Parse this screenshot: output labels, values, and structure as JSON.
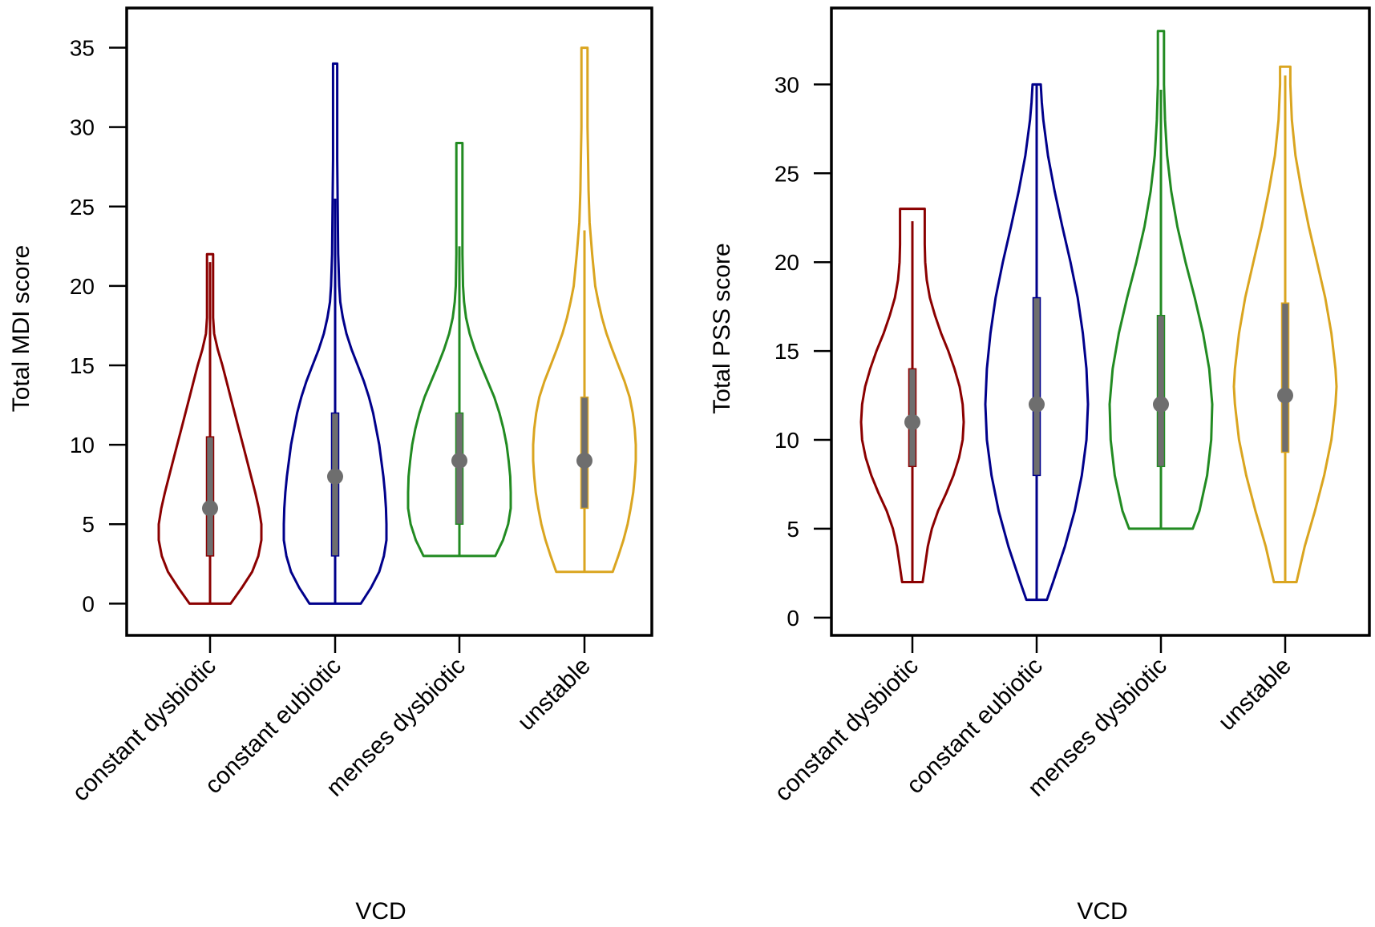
{
  "chart_data": [
    {
      "type": "violin",
      "title": "",
      "xlabel": "VCD",
      "ylabel": "Total MDI score",
      "ylim": [
        -2,
        37.5
      ],
      "yticks": [
        0,
        5,
        10,
        15,
        20,
        25,
        30,
        35
      ],
      "yticklabels": [
        "0",
        "5",
        "10",
        "15",
        "20",
        "25",
        "30",
        "35"
      ],
      "categories": [
        "constant dysbiotic",
        "constant eubiotic",
        "menses dysbiotic",
        "unstable"
      ],
      "colors": [
        "#8b0000",
        "#00008b",
        "#228b22",
        "#daa520"
      ],
      "series": [
        {
          "name": "constant dysbiotic",
          "min": 0,
          "q1": 3,
          "median": 6,
          "q3": 10.5,
          "max": 22,
          "whisker_high": 21.5,
          "density": [
            [
              0,
              0.4
            ],
            [
              1,
              0.62
            ],
            [
              2,
              0.82
            ],
            [
              3,
              0.94
            ],
            [
              4,
              1.0
            ],
            [
              5,
              1.0
            ],
            [
              6,
              0.95
            ],
            [
              7,
              0.88
            ],
            [
              8,
              0.8
            ],
            [
              9,
              0.72
            ],
            [
              10,
              0.64
            ],
            [
              11,
              0.56
            ],
            [
              12,
              0.48
            ],
            [
              13,
              0.4
            ],
            [
              14,
              0.32
            ],
            [
              15,
              0.24
            ],
            [
              16,
              0.15
            ],
            [
              17,
              0.08
            ],
            [
              18,
              0.06
            ],
            [
              19,
              0.06
            ],
            [
              20,
              0.06
            ],
            [
              21,
              0.06
            ],
            [
              22,
              0.06
            ]
          ]
        },
        {
          "name": "constant eubiotic",
          "min": 0,
          "q1": 3,
          "median": 8,
          "q3": 12,
          "max": 34,
          "whisker_high": 25.5,
          "density": [
            [
              0,
              0.5
            ],
            [
              1,
              0.7
            ],
            [
              2,
              0.86
            ],
            [
              3,
              0.95
            ],
            [
              4,
              1.0
            ],
            [
              5,
              1.0
            ],
            [
              6,
              0.99
            ],
            [
              7,
              0.97
            ],
            [
              8,
              0.94
            ],
            [
              9,
              0.9
            ],
            [
              10,
              0.86
            ],
            [
              11,
              0.8
            ],
            [
              12,
              0.74
            ],
            [
              13,
              0.66
            ],
            [
              14,
              0.56
            ],
            [
              15,
              0.44
            ],
            [
              16,
              0.32
            ],
            [
              17,
              0.22
            ],
            [
              18,
              0.15
            ],
            [
              19,
              0.1
            ],
            [
              20,
              0.08
            ],
            [
              22,
              0.06
            ],
            [
              25,
              0.05
            ],
            [
              28,
              0.04
            ],
            [
              31,
              0.04
            ],
            [
              34,
              0.04
            ]
          ]
        },
        {
          "name": "menses dysbiotic",
          "min": 3,
          "q1": 5,
          "median": 9,
          "q3": 12,
          "max": 29,
          "whisker_high": 22.5,
          "density": [
            [
              3,
              0.7
            ],
            [
              4,
              0.85
            ],
            [
              5,
              0.95
            ],
            [
              6,
              1.0
            ],
            [
              7,
              1.0
            ],
            [
              8,
              0.99
            ],
            [
              9,
              0.96
            ],
            [
              10,
              0.92
            ],
            [
              11,
              0.86
            ],
            [
              12,
              0.78
            ],
            [
              13,
              0.68
            ],
            [
              14,
              0.55
            ],
            [
              15,
              0.42
            ],
            [
              16,
              0.3
            ],
            [
              17,
              0.2
            ],
            [
              18,
              0.13
            ],
            [
              19,
              0.09
            ],
            [
              20,
              0.07
            ],
            [
              22,
              0.06
            ],
            [
              25,
              0.06
            ],
            [
              28,
              0.06
            ],
            [
              29,
              0.06
            ]
          ]
        },
        {
          "name": "unstable",
          "min": 2,
          "q1": 6,
          "median": 9,
          "q3": 13,
          "max": 35,
          "whisker_high": 23.5,
          "density": [
            [
              2,
              0.55
            ],
            [
              3,
              0.66
            ],
            [
              4,
              0.76
            ],
            [
              5,
              0.84
            ],
            [
              6,
              0.9
            ],
            [
              7,
              0.95
            ],
            [
              8,
              0.98
            ],
            [
              9,
              1.0
            ],
            [
              10,
              1.0
            ],
            [
              11,
              0.98
            ],
            [
              12,
              0.94
            ],
            [
              13,
              0.88
            ],
            [
              14,
              0.78
            ],
            [
              15,
              0.66
            ],
            [
              16,
              0.54
            ],
            [
              17,
              0.43
            ],
            [
              18,
              0.34
            ],
            [
              19,
              0.27
            ],
            [
              20,
              0.21
            ],
            [
              22,
              0.15
            ],
            [
              24,
              0.1
            ],
            [
              26,
              0.08
            ],
            [
              28,
              0.07
            ],
            [
              30,
              0.06
            ],
            [
              32,
              0.06
            ],
            [
              35,
              0.06
            ]
          ]
        }
      ]
    },
    {
      "type": "violin",
      "title": "",
      "xlabel": "VCD",
      "ylabel": "Total PSS score",
      "ylim": [
        -1,
        34.3
      ],
      "yticks": [
        0,
        5,
        10,
        15,
        20,
        25,
        30
      ],
      "yticklabels": [
        "0",
        "5",
        "10",
        "15",
        "20",
        "25",
        "30"
      ],
      "categories": [
        "constant dysbiotic",
        "constant eubiotic",
        "menses dysbiotic",
        "unstable"
      ],
      "colors": [
        "#8b0000",
        "#00008b",
        "#228b22",
        "#daa520"
      ],
      "series": [
        {
          "name": "constant dysbiotic",
          "min": 2,
          "q1": 8.5,
          "median": 11,
          "q3": 14,
          "max": 23,
          "whisker_high": 22.3,
          "density": [
            [
              2,
              0.2
            ],
            [
              3,
              0.25
            ],
            [
              4,
              0.3
            ],
            [
              5,
              0.38
            ],
            [
              6,
              0.5
            ],
            [
              7,
              0.66
            ],
            [
              8,
              0.8
            ],
            [
              9,
              0.91
            ],
            [
              10,
              0.98
            ],
            [
              11,
              1.0
            ],
            [
              12,
              0.98
            ],
            [
              13,
              0.92
            ],
            [
              14,
              0.82
            ],
            [
              15,
              0.7
            ],
            [
              16,
              0.56
            ],
            [
              17,
              0.44
            ],
            [
              18,
              0.34
            ],
            [
              19,
              0.28
            ],
            [
              20,
              0.25
            ],
            [
              21,
              0.24
            ],
            [
              22,
              0.24
            ],
            [
              23,
              0.24
            ]
          ]
        },
        {
          "name": "constant eubiotic",
          "min": 1,
          "q1": 8,
          "median": 12,
          "q3": 18,
          "max": 30,
          "whisker_high": 30,
          "density": [
            [
              1,
              0.2
            ],
            [
              2,
              0.32
            ],
            [
              4,
              0.55
            ],
            [
              6,
              0.74
            ],
            [
              8,
              0.88
            ],
            [
              10,
              0.97
            ],
            [
              12,
              1.0
            ],
            [
              14,
              0.97
            ],
            [
              16,
              0.9
            ],
            [
              18,
              0.8
            ],
            [
              20,
              0.66
            ],
            [
              22,
              0.5
            ],
            [
              24,
              0.35
            ],
            [
              26,
              0.22
            ],
            [
              28,
              0.13
            ],
            [
              29,
              0.1
            ],
            [
              30,
              0.08
            ]
          ]
        },
        {
          "name": "menses dysbiotic",
          "min": 5,
          "q1": 8.5,
          "median": 12,
          "q3": 17,
          "max": 33,
          "whisker_high": 29.7,
          "density": [
            [
              5,
              0.62
            ],
            [
              6,
              0.75
            ],
            [
              8,
              0.9
            ],
            [
              10,
              0.98
            ],
            [
              12,
              1.0
            ],
            [
              14,
              0.94
            ],
            [
              16,
              0.82
            ],
            [
              18,
              0.66
            ],
            [
              20,
              0.48
            ],
            [
              22,
              0.32
            ],
            [
              24,
              0.2
            ],
            [
              26,
              0.12
            ],
            [
              28,
              0.08
            ],
            [
              30,
              0.06
            ],
            [
              33,
              0.06
            ]
          ]
        },
        {
          "name": "unstable",
          "min": 2,
          "q1": 9.3,
          "median": 12.5,
          "q3": 17.7,
          "max": 31,
          "whisker_high": 30.5,
          "density": [
            [
              2,
              0.22
            ],
            [
              4,
              0.38
            ],
            [
              6,
              0.58
            ],
            [
              8,
              0.76
            ],
            [
              10,
              0.9
            ],
            [
              12,
              0.98
            ],
            [
              13,
              1.0
            ],
            [
              14,
              0.98
            ],
            [
              16,
              0.9
            ],
            [
              18,
              0.78
            ],
            [
              20,
              0.62
            ],
            [
              22,
              0.46
            ],
            [
              24,
              0.32
            ],
            [
              26,
              0.2
            ],
            [
              28,
              0.13
            ],
            [
              30,
              0.1
            ],
            [
              31,
              0.1
            ]
          ]
        }
      ]
    }
  ]
}
